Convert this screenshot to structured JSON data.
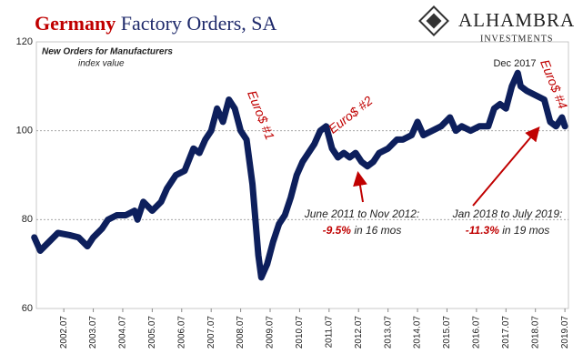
{
  "chart_data": {
    "type": "line",
    "title_highlight": "Germany",
    "title": "Factory Orders, SA",
    "logo": "ALHAMBRA",
    "logo_sub": "INVESTMENTS",
    "subtitle": "New Orders for Manufacturers",
    "y_label": "index value",
    "annotations": {
      "euro1": "Euro$ #1",
      "euro2": "Euro$ #2",
      "euro4": "Euro$ #4",
      "peak": "Dec 2017",
      "range1": "June 2011 to Nov 2012:",
      "change1": "-9.5%",
      "span1": "in 16 mos",
      "range2": "Jan 2018 to July 2019:",
      "change2": "-11.3%",
      "span2": "in 19 mos"
    },
    "color": "#0d1f5c",
    "x": [
      2001.5,
      2001.7,
      2002.0,
      2002.3,
      2002.7,
      2003.0,
      2003.3,
      2003.5,
      2003.8,
      2004.0,
      2004.3,
      2004.6,
      2004.9,
      2005.0,
      2005.2,
      2005.5,
      2005.8,
      2006.0,
      2006.3,
      2006.6,
      2006.9,
      2007.1,
      2007.3,
      2007.5,
      2007.7,
      2007.9,
      2008.1,
      2008.3,
      2008.5,
      2008.7,
      2008.9,
      2009.1,
      2009.2,
      2009.4,
      2009.6,
      2009.8,
      2010.0,
      2010.2,
      2010.4,
      2010.6,
      2010.8,
      2011.0,
      2011.2,
      2011.4,
      2011.6,
      2011.8,
      2012.0,
      2012.2,
      2012.4,
      2012.6,
      2012.8,
      2013.0,
      2013.2,
      2013.5,
      2013.8,
      2014.0,
      2014.3,
      2014.5,
      2014.7,
      2015.0,
      2015.3,
      2015.6,
      2015.8,
      2016.0,
      2016.3,
      2016.6,
      2016.9,
      2017.1,
      2017.3,
      2017.5,
      2017.7,
      2017.9,
      2018.0,
      2018.2,
      2018.5,
      2018.8,
      2019.0,
      2019.2,
      2019.4,
      2019.5
    ],
    "values": [
      76,
      73,
      75,
      77,
      76.5,
      76,
      74,
      76,
      78,
      80,
      81,
      81,
      82,
      80,
      84,
      82,
      84,
      87,
      90,
      91,
      96,
      95,
      98,
      100,
      105,
      102,
      107,
      105,
      100,
      98,
      88,
      72,
      67,
      70,
      75,
      79,
      81,
      85,
      90,
      93,
      95,
      97,
      100,
      101,
      96,
      94,
      95,
      94,
      95,
      93,
      92,
      93,
      95,
      96,
      98,
      98,
      99,
      102,
      99,
      100,
      101,
      103,
      100,
      101,
      100,
      101,
      101,
      105,
      106,
      105,
      110,
      113,
      110,
      109,
      108,
      107,
      102,
      101,
      103,
      101
    ],
    "xlim": [
      2001.57,
      2019.62
    ],
    "xticks": [
      {
        "value": 2002.5,
        "label": "2002.07"
      },
      {
        "value": 2003.5,
        "label": "2003.07"
      },
      {
        "value": 2004.5,
        "label": "2004.07"
      },
      {
        "value": 2005.5,
        "label": "2005.07"
      },
      {
        "value": 2006.5,
        "label": "2006.07"
      },
      {
        "value": 2007.5,
        "label": "2007.07"
      },
      {
        "value": 2008.5,
        "label": "2008.07"
      },
      {
        "value": 2009.5,
        "label": "2009.07"
      },
      {
        "value": 2010.5,
        "label": "2010.07"
      },
      {
        "value": 2011.5,
        "label": "2011.07"
      },
      {
        "value": 2012.5,
        "label": "2012.07"
      },
      {
        "value": 2013.5,
        "label": "2013.07"
      },
      {
        "value": 2014.5,
        "label": "2014.07"
      },
      {
        "value": 2015.5,
        "label": "2015.07"
      },
      {
        "value": 2016.5,
        "label": "2016.07"
      },
      {
        "value": 2017.5,
        "label": "2017.07"
      },
      {
        "value": 2018.5,
        "label": "2018.07"
      },
      {
        "value": 2019.5,
        "label": "2019.07"
      }
    ],
    "ylim": [
      60,
      120
    ],
    "yticks": [
      60,
      80,
      100,
      120
    ],
    "grid": true
  }
}
